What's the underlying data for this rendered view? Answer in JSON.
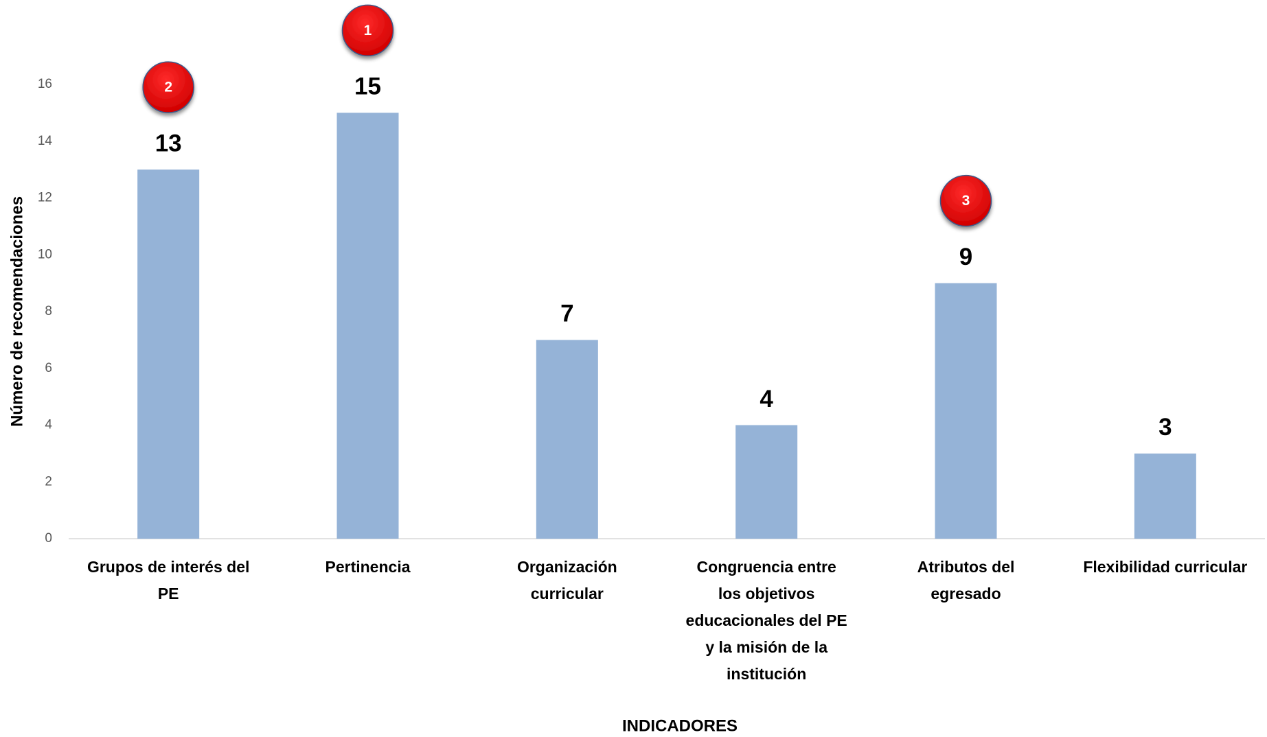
{
  "chart_data": {
    "type": "bar",
    "categories": [
      "Grupos de interés del\nPE",
      "Pertinencia",
      "Organización\ncurricular",
      "Congruencia entre\nlos objetivos\neducacionales del PE\ny la misión de la\ninstitución",
      "Atributos del\negresado",
      "Flexibilidad curricular"
    ],
    "values": [
      13,
      15,
      7,
      4,
      9,
      3
    ],
    "badges": [
      2,
      1,
      null,
      null,
      3,
      null
    ],
    "color": "#95b3d7",
    "ylim": [
      0,
      16
    ],
    "yticks": [
      0,
      2,
      4,
      6,
      8,
      10,
      12,
      14,
      16
    ],
    "ylabel": "Número de recomendaciones",
    "xlabel": "INDICADORES",
    "grid": false
  }
}
